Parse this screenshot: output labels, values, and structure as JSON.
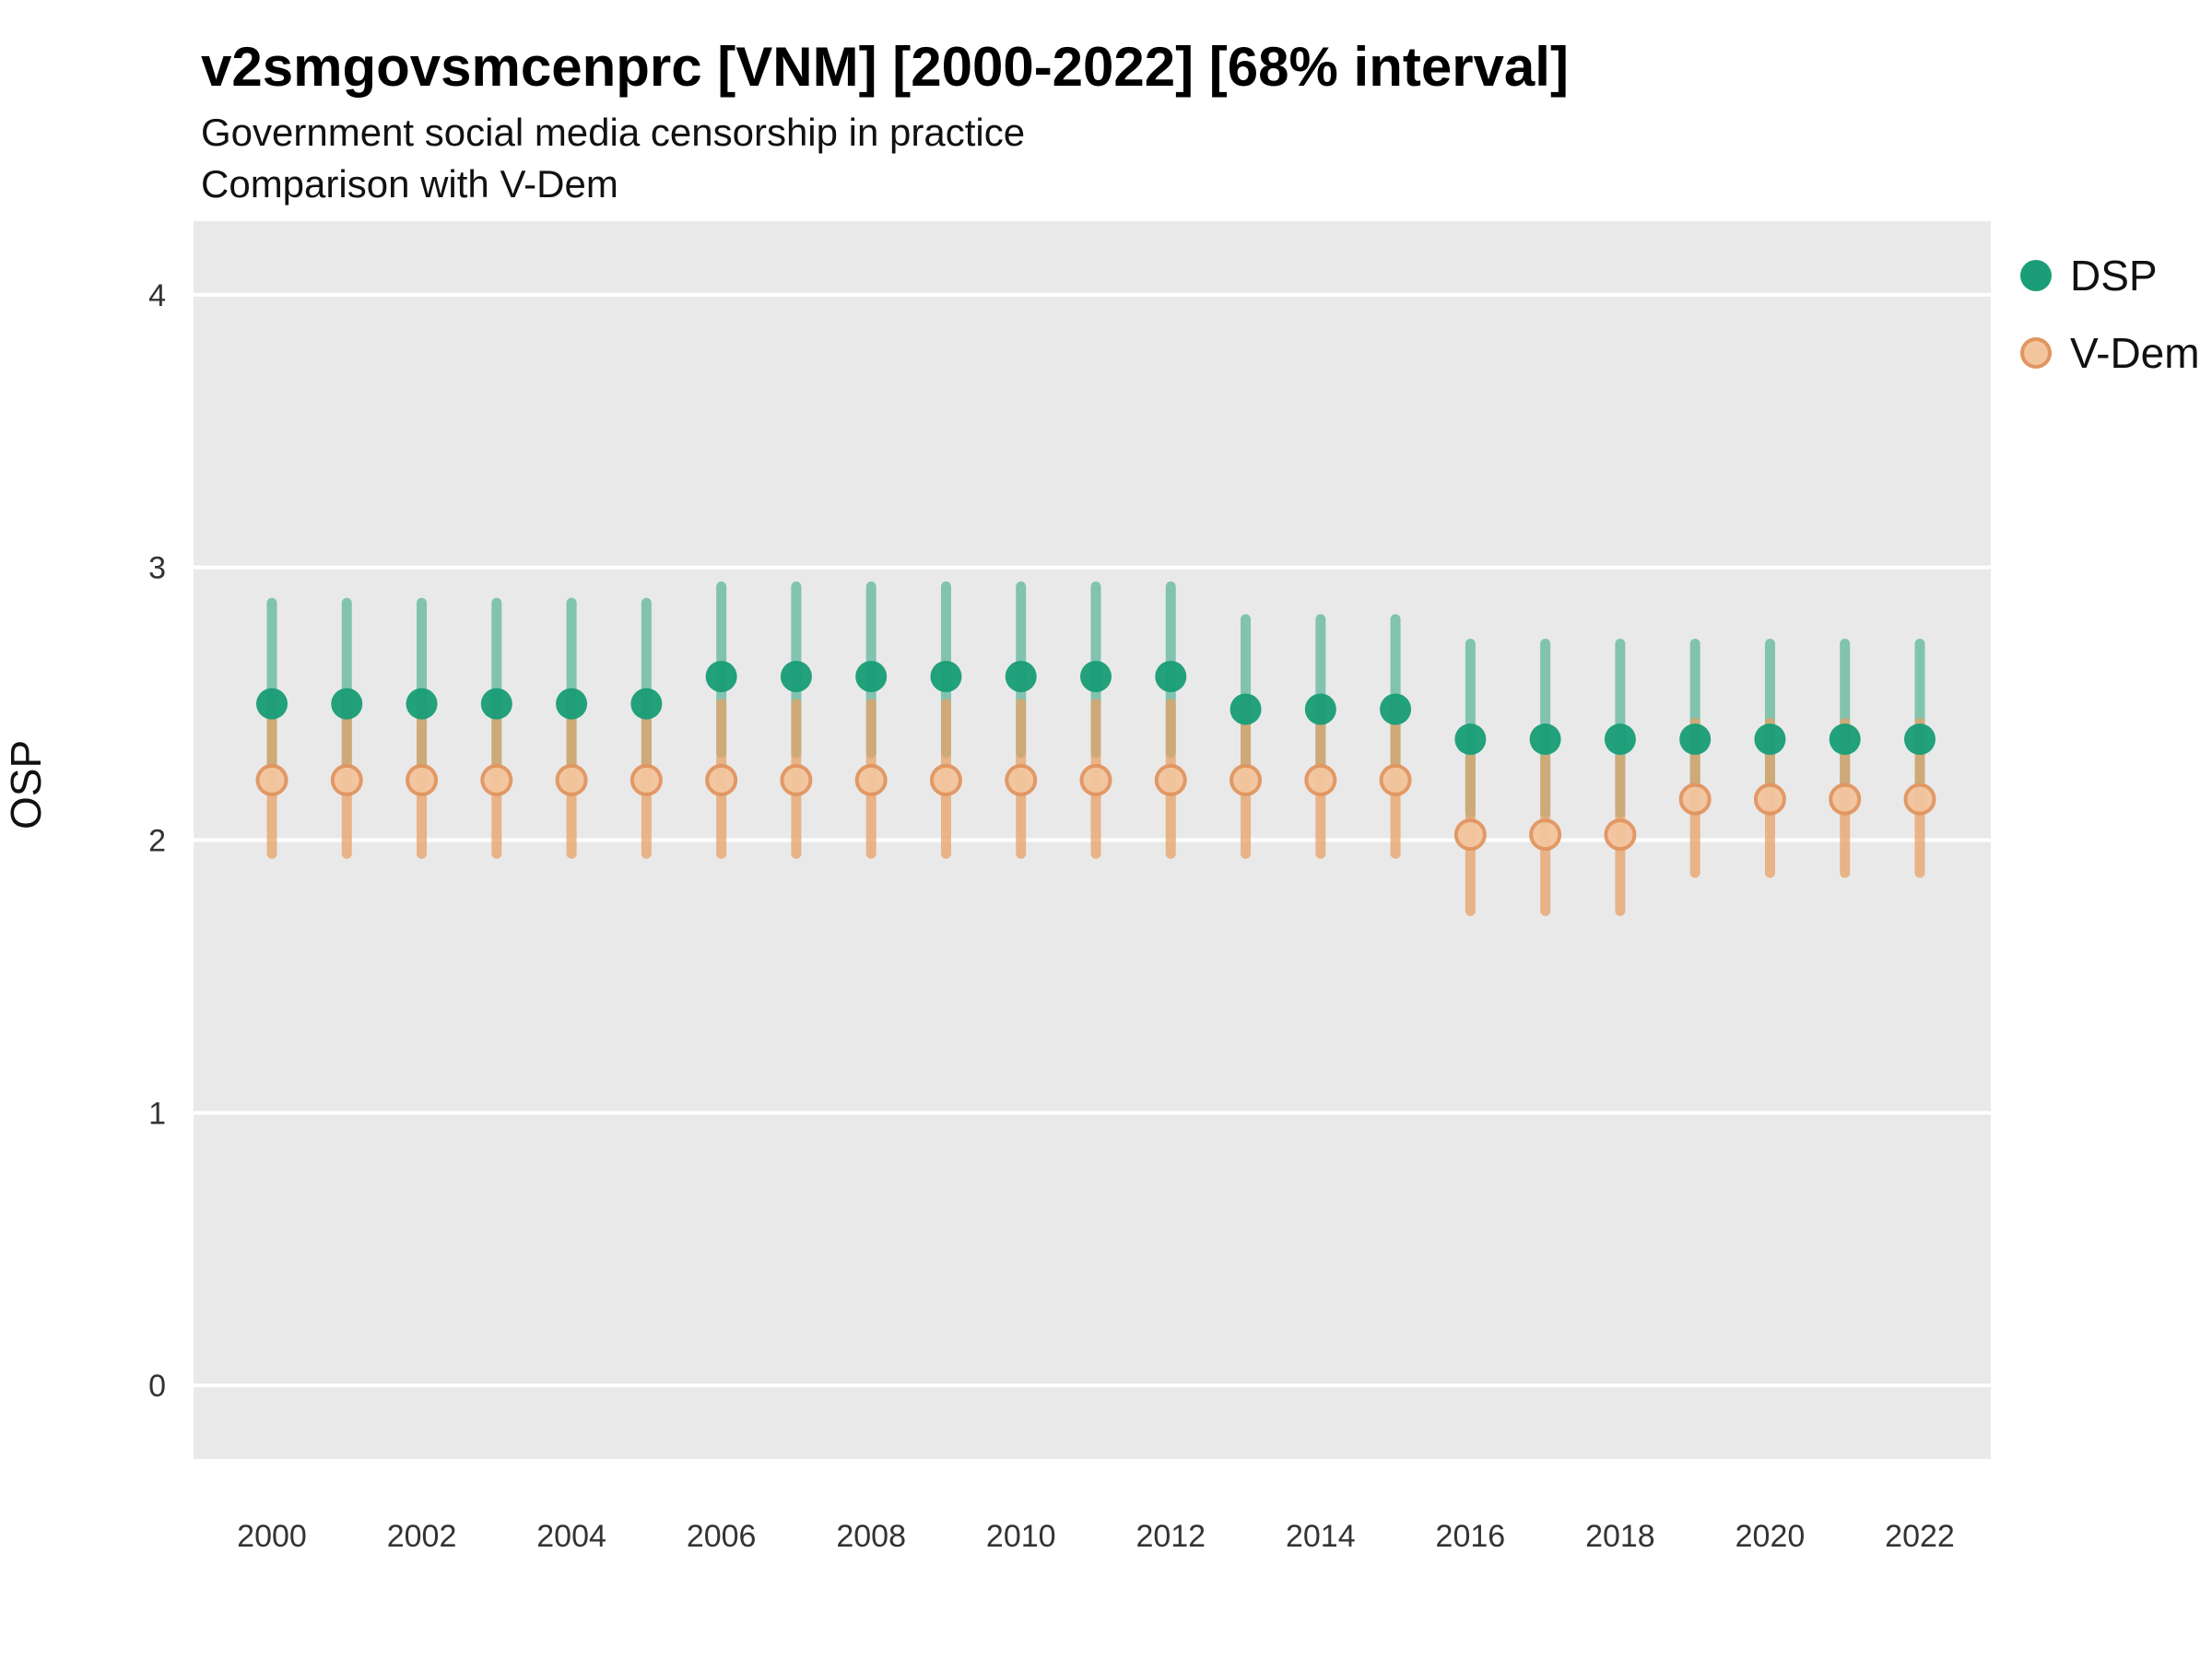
{
  "header": {
    "title": "v2smgovsmcenprc [VNM] [2000-2022] [68% interval]",
    "subtitle": "Government social media censorship in practice",
    "subtitle2": "Comparison with V-Dem"
  },
  "legend": [
    {
      "label": "DSP",
      "color": "#1b9e77"
    },
    {
      "label": "V-Dem",
      "fill": "#f3c59e",
      "stroke": "#e19560"
    }
  ],
  "chart_data": {
    "type": "scatter",
    "title": "v2smgovsmcenprc [VNM] [2000-2022] [68% interval]",
    "subtitle": "Government social media censorship in practice",
    "subtitle2": "Comparison with V-Dem",
    "xlabel": "",
    "ylabel": "OSP",
    "interval": "68%",
    "grid": true,
    "plot_bg": "#e9e9e9",
    "grid_color": "#ffffff",
    "legend_position": "right",
    "ylim": [
      -0.27,
      4.27
    ],
    "yticks": [
      0,
      1,
      2,
      3,
      4
    ],
    "xticks": [
      2000,
      2002,
      2004,
      2006,
      2008,
      2010,
      2012,
      2014,
      2016,
      2018,
      2020,
      2022
    ],
    "x": [
      2000,
      2001,
      2002,
      2003,
      2004,
      2005,
      2006,
      2007,
      2008,
      2009,
      2010,
      2011,
      2012,
      2013,
      2014,
      2015,
      2016,
      2017,
      2018,
      2019,
      2020,
      2021,
      2022
    ],
    "series": [
      {
        "name": "DSP",
        "color": "#1b9e77",
        "values": [
          2.5,
          2.5,
          2.5,
          2.5,
          2.5,
          2.5,
          2.6,
          2.6,
          2.6,
          2.6,
          2.6,
          2.6,
          2.6,
          2.48,
          2.48,
          2.48,
          2.37,
          2.37,
          2.37,
          2.37,
          2.37,
          2.37,
          2.37
        ],
        "low": [
          2.28,
          2.28,
          2.28,
          2.28,
          2.28,
          2.28,
          2.32,
          2.32,
          2.32,
          2.32,
          2.32,
          2.32,
          2.32,
          2.28,
          2.28,
          2.28,
          2.1,
          2.1,
          2.1,
          2.12,
          2.12,
          2.12,
          2.12
        ],
        "high": [
          2.87,
          2.87,
          2.87,
          2.87,
          2.87,
          2.87,
          2.93,
          2.93,
          2.93,
          2.93,
          2.93,
          2.93,
          2.93,
          2.81,
          2.81,
          2.81,
          2.72,
          2.72,
          2.72,
          2.72,
          2.72,
          2.72,
          2.72
        ]
      },
      {
        "name": "V-Dem",
        "fill_color": "#f3c59e",
        "stroke_color": "#e19560",
        "bar_color": "#e8a266",
        "values": [
          2.22,
          2.22,
          2.22,
          2.22,
          2.22,
          2.22,
          2.22,
          2.22,
          2.22,
          2.22,
          2.22,
          2.22,
          2.22,
          2.22,
          2.22,
          2.22,
          2.02,
          2.02,
          2.02,
          2.15,
          2.15,
          2.15,
          2.15
        ],
        "low": [
          1.95,
          1.95,
          1.95,
          1.95,
          1.95,
          1.95,
          1.95,
          1.95,
          1.95,
          1.95,
          1.95,
          1.95,
          1.95,
          1.95,
          1.95,
          1.95,
          1.74,
          1.74,
          1.74,
          1.88,
          1.88,
          1.88,
          1.88
        ],
        "high": [
          2.5,
          2.5,
          2.5,
          2.5,
          2.5,
          2.5,
          2.5,
          2.5,
          2.5,
          2.5,
          2.5,
          2.5,
          2.5,
          2.5,
          2.5,
          2.5,
          2.3,
          2.3,
          2.3,
          2.43,
          2.43,
          2.43,
          2.43
        ]
      }
    ]
  }
}
